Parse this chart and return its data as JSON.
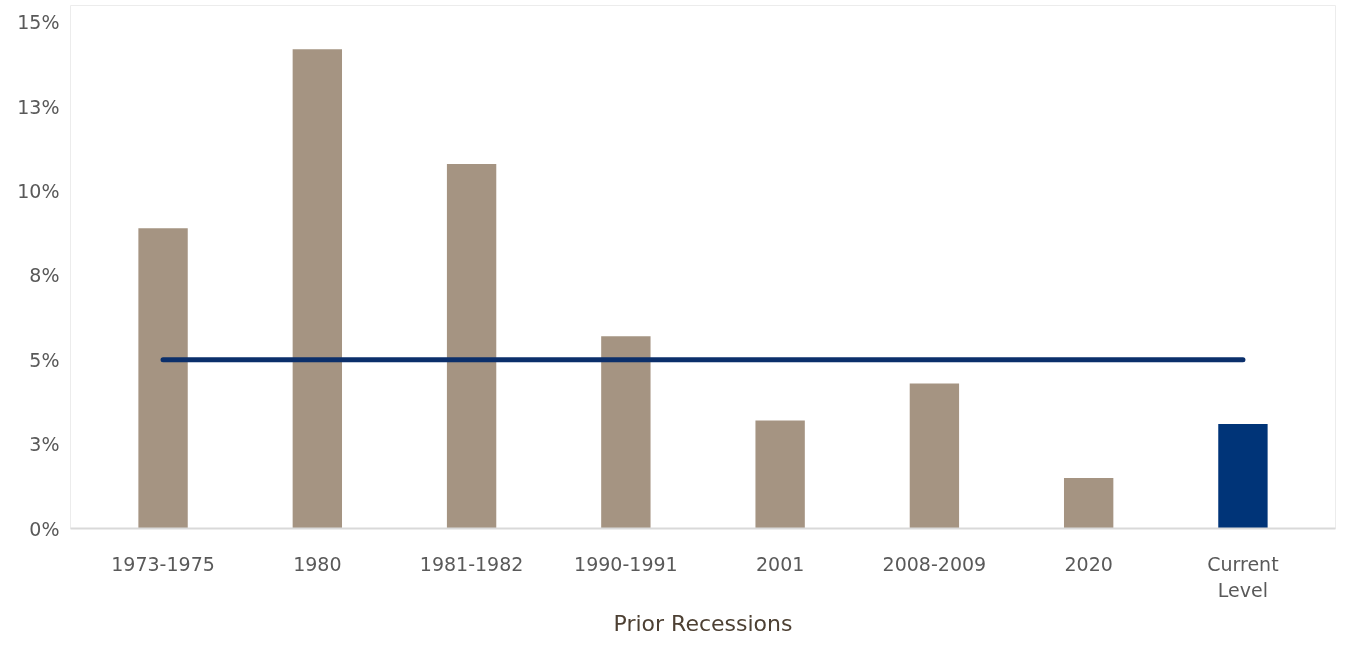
{
  "chart_data": {
    "type": "bar",
    "categories": [
      "1973-1975",
      "1980",
      "1981-1982",
      "1990-1991",
      "2001",
      "2008-2009",
      "2020",
      "Current\nLevel"
    ],
    "series": [
      {
        "values": [
          8.9,
          14.2,
          10.8,
          5.7,
          3.2,
          4.3,
          1.5,
          3.1
        ],
        "colors": [
          "#a59482",
          "#a59482",
          "#a59482",
          "#a59482",
          "#a59482",
          "#a59482",
          "#a59482",
          "#003478"
        ]
      },
      {
        "type": "line",
        "color": "#0b2f6b",
        "values": [
          5.0,
          5.0,
          5.0,
          5.0,
          5.0,
          5.0,
          5.0,
          5.0
        ]
      }
    ],
    "ylim": [
      0,
      15.5
    ],
    "yticks": [
      {
        "value": 0,
        "label": "0%"
      },
      {
        "value": 2.5,
        "label": "3%"
      },
      {
        "value": 5,
        "label": "5%"
      },
      {
        "value": 7.5,
        "label": "8%"
      },
      {
        "value": 10,
        "label": "10%"
      },
      {
        "value": 12.5,
        "label": "13%"
      },
      {
        "value": 15,
        "label": "15%"
      }
    ],
    "grid": false,
    "annotations": [
      "Prior Recessions"
    ]
  }
}
